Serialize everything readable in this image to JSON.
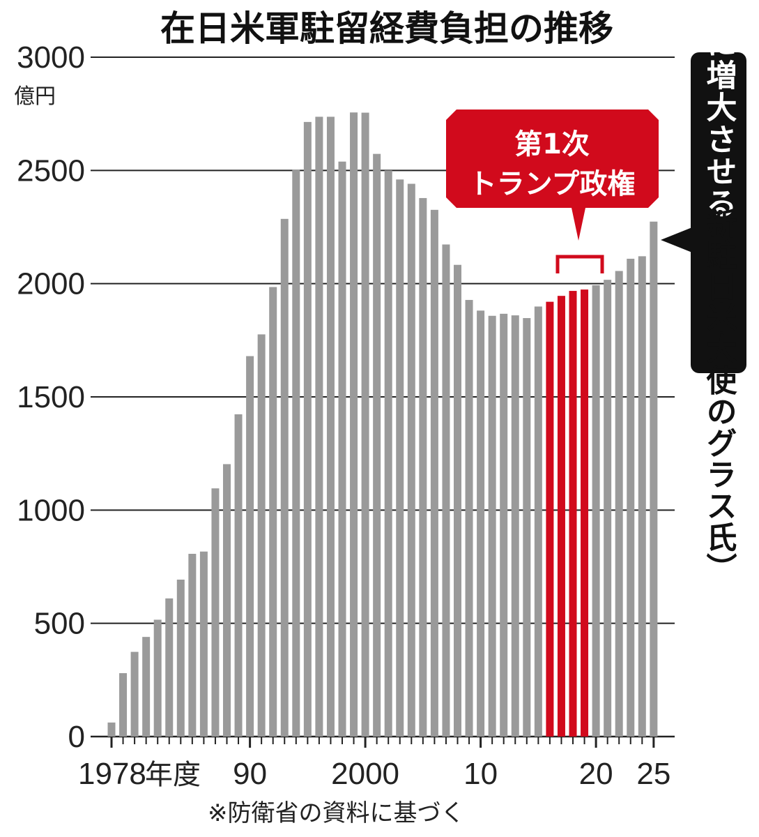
{
  "title": "在日米軍駐留経費負担の推移",
  "y_unit": "億円",
  "x_unit": "年度",
  "source_note": "※防衛省の資料に基づく",
  "callout": {
    "line1": "第1次",
    "line2": "トランプ政権"
  },
  "quote": {
    "text": "継続的に増大させる",
    "speaker": "（新駐日米大使のグラス氏）"
  },
  "colors": {
    "bar": "#9a9a9a",
    "highlight": "#d10a1c",
    "grid": "#222222",
    "quote_bg": "#111111"
  },
  "chart_data": {
    "type": "bar",
    "title": "在日米軍駐留経費負担の推移",
    "ylabel": "億円",
    "ylim": [
      0,
      3000
    ],
    "yticks": [
      0,
      500,
      1000,
      1500,
      2000,
      2500,
      3000
    ],
    "xtick_labels": [
      {
        "year": 1978,
        "label": "1978"
      },
      {
        "year": 1990,
        "label": "90"
      },
      {
        "year": 2000,
        "label": "2000"
      },
      {
        "year": 2010,
        "label": "10"
      },
      {
        "year": 2020,
        "label": "20"
      },
      {
        "year": 2025,
        "label": "25"
      }
    ],
    "highlight_range": [
      2016,
      2019
    ],
    "categories": [
      1978,
      1979,
      1980,
      1981,
      1982,
      1983,
      1984,
      1985,
      1986,
      1987,
      1988,
      1989,
      1990,
      1991,
      1992,
      1993,
      1994,
      1995,
      1996,
      1997,
      1998,
      1999,
      2000,
      2001,
      2002,
      2003,
      2004,
      2005,
      2006,
      2007,
      2008,
      2009,
      2010,
      2011,
      2012,
      2013,
      2014,
      2015,
      2016,
      2017,
      2018,
      2019,
      2020,
      2021,
      2022,
      2023,
      2024,
      2025
    ],
    "values": [
      62,
      280,
      374,
      440,
      516,
      610,
      693,
      807,
      817,
      1096,
      1203,
      1423,
      1680,
      1776,
      1985,
      2286,
      2502,
      2714,
      2737,
      2737,
      2539,
      2756,
      2755,
      2573,
      2500,
      2460,
      2441,
      2378,
      2326,
      2173,
      2083,
      1928,
      1881,
      1858,
      1867,
      1860,
      1848,
      1899,
      1920,
      1946,
      1968,
      1974,
      1993,
      2017,
      2056,
      2110,
      2121,
      2274
    ]
  }
}
